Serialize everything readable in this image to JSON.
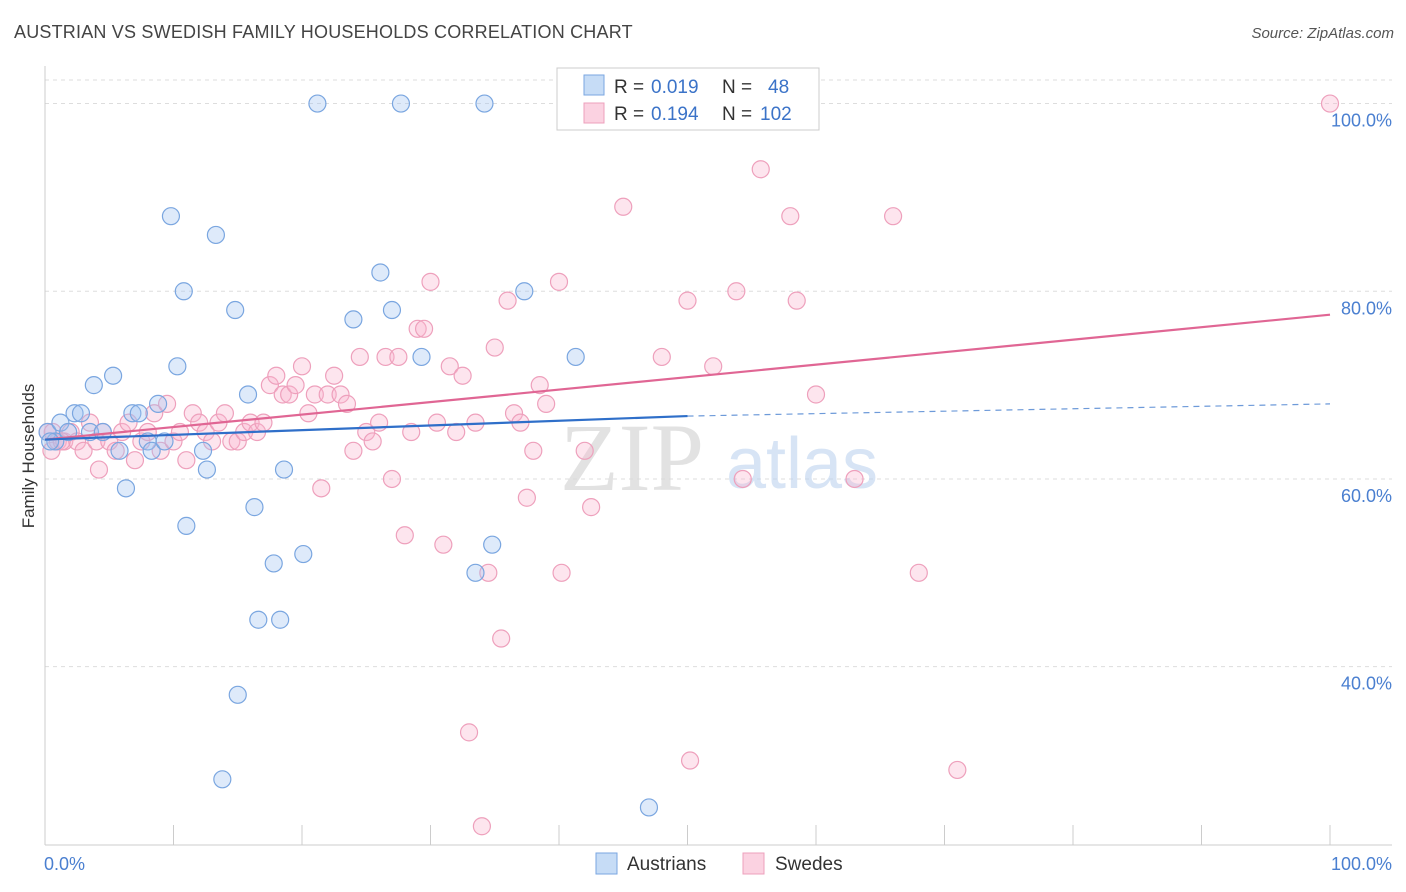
{
  "title": "AUSTRIAN VS SWEDISH FAMILY HOUSEHOLDS CORRELATION CHART",
  "source": "Source: ZipAtlas.com",
  "watermark": {
    "zip": "ZIP",
    "atlas": "atlas"
  },
  "colors": {
    "austrians_fill": "rgba(160,196,240,0.35)",
    "austrians_stroke": "#7aa6e0",
    "austrians_line": "#2f6fc9",
    "swedes_fill": "rgba(248,180,205,0.35)",
    "swedes_stroke": "#eea0bc",
    "swedes_line": "#e06694",
    "grid": "#dddddd",
    "tick_text": "#4a7fd0"
  },
  "chart_data": {
    "type": "scatter",
    "title": "AUSTRIAN VS SWEDISH FAMILY HOUSEHOLDS CORRELATION CHART",
    "xlabel": "",
    "ylabel": "Family Households",
    "xlim": [
      0,
      100
    ],
    "ylim": [
      21,
      104
    ],
    "x_tick_labels": [
      {
        "value": 0,
        "label": "0.0%"
      },
      {
        "value": 100,
        "label": "100.0%"
      }
    ],
    "y_tick_labels": [
      {
        "value": 100,
        "label": "100.0%"
      },
      {
        "value": 80,
        "label": "80.0%"
      },
      {
        "value": 60,
        "label": "60.0%"
      },
      {
        "value": 40,
        "label": "40.0%"
      }
    ],
    "legend": [
      {
        "series": "Austrians",
        "r_label": "R =",
        "r_value": "0.019",
        "n_label": "N =",
        "n_value": "48"
      },
      {
        "series": "Swedes",
        "r_label": "R =",
        "r_value": "0.194",
        "n_label": "N =",
        "n_value": "102"
      }
    ],
    "series": [
      {
        "name": "Austrians",
        "trend": {
          "x0": 0,
          "y0": 64.2,
          "x1": 50,
          "y1": 66.7,
          "dash_to_x": 100,
          "dash_to_y": 68.0
        },
        "points": [
          [
            0.2,
            65
          ],
          [
            0.8,
            64
          ],
          [
            1.2,
            66
          ],
          [
            1.8,
            65
          ],
          [
            2.3,
            67
          ],
          [
            2.8,
            67
          ],
          [
            3.5,
            65
          ],
          [
            3.8,
            70
          ],
          [
            4.5,
            65
          ],
          [
            5.3,
            71
          ],
          [
            5.8,
            63
          ],
          [
            6.3,
            59
          ],
          [
            6.8,
            67
          ],
          [
            7.3,
            67
          ],
          [
            8.0,
            64
          ],
          [
            8.3,
            63
          ],
          [
            8.8,
            68
          ],
          [
            9.3,
            64
          ],
          [
            9.8,
            88
          ],
          [
            10.3,
            72
          ],
          [
            10.8,
            80
          ],
          [
            11.0,
            55
          ],
          [
            12.3,
            63
          ],
          [
            12.6,
            61
          ],
          [
            13.3,
            86
          ],
          [
            13.8,
            28
          ],
          [
            14.8,
            78
          ],
          [
            15.0,
            37
          ],
          [
            15.8,
            69
          ],
          [
            16.3,
            57
          ],
          [
            16.6,
            45
          ],
          [
            17.8,
            51
          ],
          [
            18.3,
            45
          ],
          [
            18.6,
            61
          ],
          [
            20.1,
            52
          ],
          [
            21.2,
            100
          ],
          [
            24.0,
            77
          ],
          [
            26.1,
            82
          ],
          [
            27.0,
            78
          ],
          [
            27.7,
            100
          ],
          [
            29.3,
            73
          ],
          [
            33.5,
            50
          ],
          [
            34.2,
            100
          ],
          [
            34.8,
            53
          ],
          [
            37.3,
            80
          ],
          [
            41.3,
            73
          ],
          [
            47.0,
            25
          ],
          [
            0.4,
            64
          ]
        ]
      },
      {
        "name": "Swedes",
        "trend": {
          "x0": 0,
          "y0": 64.2,
          "x1": 100,
          "y1": 77.5
        },
        "points": [
          [
            0.2,
            65
          ],
          [
            0.5,
            63
          ],
          [
            1.0,
            64
          ],
          [
            1.5,
            64
          ],
          [
            2.0,
            65
          ],
          [
            2.5,
            64
          ],
          [
            3.0,
            63
          ],
          [
            3.5,
            66
          ],
          [
            4.0,
            64
          ],
          [
            4.5,
            65
          ],
          [
            5.0,
            64
          ],
          [
            5.5,
            63
          ],
          [
            6.0,
            65
          ],
          [
            6.5,
            66
          ],
          [
            7.0,
            62
          ],
          [
            7.5,
            64
          ],
          [
            8.0,
            65
          ],
          [
            8.5,
            67
          ],
          [
            9.0,
            63
          ],
          [
            9.5,
            68
          ],
          [
            10.0,
            64
          ],
          [
            10.5,
            65
          ],
          [
            11.0,
            62
          ],
          [
            11.5,
            67
          ],
          [
            12.0,
            66
          ],
          [
            12.5,
            65
          ],
          [
            13.0,
            64
          ],
          [
            13.5,
            66
          ],
          [
            14.0,
            67
          ],
          [
            14.5,
            64
          ],
          [
            15.0,
            64
          ],
          [
            15.5,
            65
          ],
          [
            16.0,
            66
          ],
          [
            16.5,
            65
          ],
          [
            17.0,
            66
          ],
          [
            17.5,
            70
          ],
          [
            18.0,
            71
          ],
          [
            18.5,
            69
          ],
          [
            19.0,
            69
          ],
          [
            19.5,
            70
          ],
          [
            20.0,
            72
          ],
          [
            20.5,
            67
          ],
          [
            21.0,
            69
          ],
          [
            21.5,
            59
          ],
          [
            22.0,
            69
          ],
          [
            22.5,
            71
          ],
          [
            23.0,
            69
          ],
          [
            23.5,
            68
          ],
          [
            24.0,
            63
          ],
          [
            24.5,
            73
          ],
          [
            25.0,
            65
          ],
          [
            25.5,
            64
          ],
          [
            26.0,
            66
          ],
          [
            26.5,
            73
          ],
          [
            27.0,
            60
          ],
          [
            27.5,
            73
          ],
          [
            28.0,
            54
          ],
          [
            28.5,
            65
          ],
          [
            29.0,
            76
          ],
          [
            29.5,
            76
          ],
          [
            30.0,
            81
          ],
          [
            30.5,
            66
          ],
          [
            31.0,
            53
          ],
          [
            31.5,
            72
          ],
          [
            32.0,
            65
          ],
          [
            32.5,
            71
          ],
          [
            33.0,
            33
          ],
          [
            33.5,
            66
          ],
          [
            34.0,
            23
          ],
          [
            34.5,
            50
          ],
          [
            35.0,
            74
          ],
          [
            35.5,
            43
          ],
          [
            36.0,
            79
          ],
          [
            36.5,
            67
          ],
          [
            37.0,
            66
          ],
          [
            37.5,
            58
          ],
          [
            38.0,
            63
          ],
          [
            38.5,
            70
          ],
          [
            39.0,
            68
          ],
          [
            40.0,
            81
          ],
          [
            40.2,
            50
          ],
          [
            42.0,
            63
          ],
          [
            42.5,
            57
          ],
          [
            45.0,
            89
          ],
          [
            48.0,
            73
          ],
          [
            50.0,
            79
          ],
          [
            50.2,
            30
          ],
          [
            52.0,
            72
          ],
          [
            53.8,
            80
          ],
          [
            54.3,
            60
          ],
          [
            55.7,
            93
          ],
          [
            58.0,
            88
          ],
          [
            58.5,
            79
          ],
          [
            60.0,
            69
          ],
          [
            63.0,
            60
          ],
          [
            66.0,
            88
          ],
          [
            68.0,
            50
          ],
          [
            71.0,
            29
          ],
          [
            100.0,
            100
          ],
          [
            4.2,
            61
          ],
          [
            0.6,
            65
          ],
          [
            1.3,
            64
          ]
        ]
      }
    ]
  }
}
